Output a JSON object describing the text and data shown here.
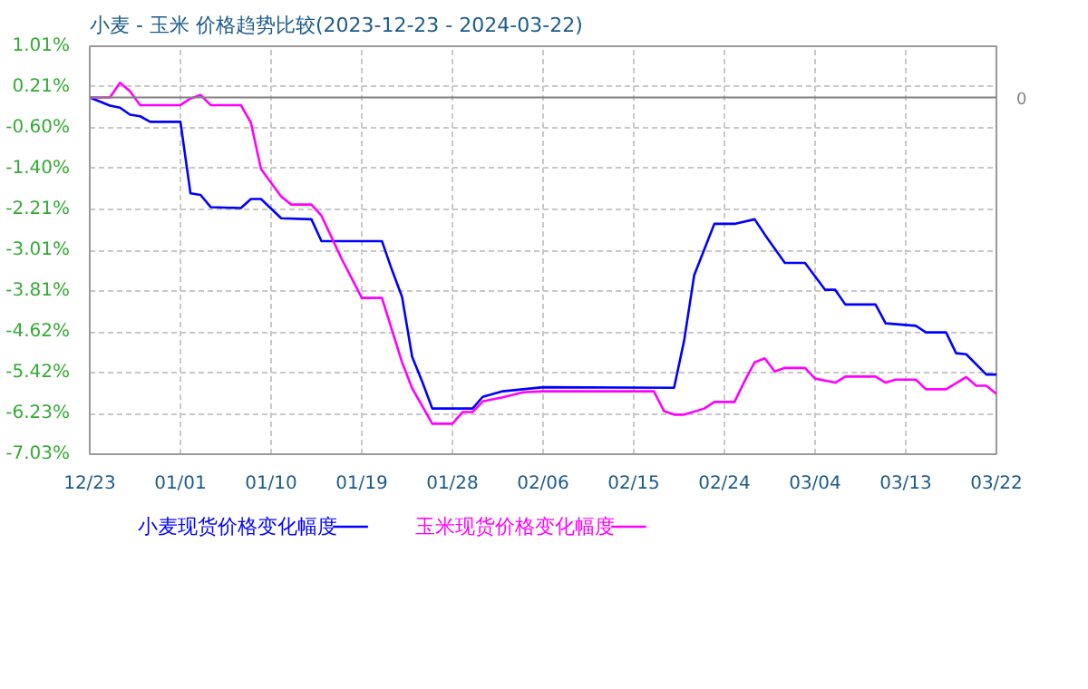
{
  "chart_data": {
    "type": "line",
    "title": "小麦 - 玉米 价格趋势比较(2023-12-23 - 2024-03-22)",
    "series": [
      {
        "name": "小麦现货价格变化幅度",
        "color": "#0000ff",
        "x": [
          "2023-12-23",
          "2023-12-25",
          "2023-12-26",
          "2023-12-27",
          "2023-12-28",
          "2023-12-29",
          "2024-01-01",
          "2024-01-02",
          "2024-01-03",
          "2024-01-04",
          "2024-01-07",
          "2024-01-08",
          "2024-01-09",
          "2024-01-11",
          "2024-01-14",
          "2024-01-15",
          "2024-01-21",
          "2024-01-22",
          "2024-01-23",
          "2024-01-24",
          "2024-01-25",
          "2024-01-26",
          "2024-01-30",
          "2024-01-31",
          "2024-02-02",
          "2024-02-06",
          "2024-02-19",
          "2024-02-20",
          "2024-02-21",
          "2024-02-23",
          "2024-02-25",
          "2024-02-27",
          "2024-02-28",
          "2024-03-01",
          "2024-03-03",
          "2024-03-05",
          "2024-03-06",
          "2024-03-07",
          "2024-03-10",
          "2024-03-11",
          "2024-03-14",
          "2024-03-15",
          "2024-03-17",
          "2024-03-18",
          "2024-03-19",
          "2024-03-21",
          "2024-03-22"
        ],
        "values": [
          0.0,
          -0.16,
          -0.2,
          -0.34,
          -0.37,
          -0.48,
          -0.48,
          -1.89,
          -1.92,
          -2.16,
          -2.18,
          -2.0,
          -2.0,
          -2.38,
          -2.4,
          -2.83,
          -2.83,
          -3.4,
          -3.93,
          -5.11,
          -5.6,
          -6.13,
          -6.13,
          -5.9,
          -5.79,
          -5.71,
          -5.72,
          -4.79,
          -3.5,
          -2.49,
          -2.49,
          -2.4,
          -2.7,
          -3.26,
          -3.26,
          -3.79,
          -3.79,
          -4.08,
          -4.08,
          -4.45,
          -4.5,
          -4.63,
          -4.63,
          -5.04,
          -5.06,
          -5.46,
          -5.46
        ]
      },
      {
        "name": "玉米现货价格变化幅度",
        "color": "#ff00ff",
        "x": [
          "2023-12-23",
          "2023-12-25",
          "2023-12-26",
          "2023-12-27",
          "2023-12-28",
          "2024-01-01",
          "2024-01-02",
          "2024-01-03",
          "2024-01-04",
          "2024-01-07",
          "2024-01-08",
          "2024-01-09",
          "2024-01-11",
          "2024-01-12",
          "2024-01-14",
          "2024-01-15",
          "2024-01-17",
          "2024-01-18",
          "2024-01-19",
          "2024-01-21",
          "2024-01-23",
          "2024-01-24",
          "2024-01-26",
          "2024-01-28",
          "2024-01-29",
          "2024-01-30",
          "2024-01-31",
          "2024-02-02",
          "2024-02-04",
          "2024-02-06",
          "2024-02-17",
          "2024-02-18",
          "2024-02-19",
          "2024-02-20",
          "2024-02-22",
          "2024-02-23",
          "2024-02-25",
          "2024-02-26",
          "2024-02-27",
          "2024-02-28",
          "2024-02-29",
          "2024-03-01",
          "2024-03-03",
          "2024-03-04",
          "2024-03-06",
          "2024-03-07",
          "2024-03-10",
          "2024-03-11",
          "2024-03-12",
          "2024-03-14",
          "2024-03-15",
          "2024-03-17",
          "2024-03-19",
          "2024-03-20",
          "2024-03-21",
          "2024-03-22"
        ],
        "values": [
          0.0,
          0.0,
          0.29,
          0.12,
          -0.15,
          -0.15,
          -0.02,
          0.05,
          -0.15,
          -0.15,
          -0.5,
          -1.41,
          -1.95,
          -2.11,
          -2.11,
          -2.33,
          -3.18,
          -3.56,
          -3.95,
          -3.95,
          -5.22,
          -5.73,
          -6.43,
          -6.43,
          -6.2,
          -6.2,
          -5.99,
          -5.91,
          -5.81,
          -5.79,
          -5.79,
          -6.18,
          -6.25,
          -6.25,
          -6.13,
          -6.0,
          -6.0,
          -5.59,
          -5.22,
          -5.14,
          -5.4,
          -5.33,
          -5.33,
          -5.54,
          -5.62,
          -5.5,
          -5.5,
          -5.62,
          -5.56,
          -5.56,
          -5.75,
          -5.75,
          -5.51,
          -5.68,
          -5.68,
          -5.84
        ]
      }
    ],
    "xlim": [
      "2023-12-23",
      "2024-03-22"
    ],
    "xticks": [
      {
        "value": "2023-12-23",
        "label": "12/23"
      },
      {
        "value": "2024-01-01",
        "label": "01/01"
      },
      {
        "value": "2024-01-10",
        "label": "01/10"
      },
      {
        "value": "2024-01-19",
        "label": "01/19"
      },
      {
        "value": "2024-01-28",
        "label": "01/28"
      },
      {
        "value": "2024-02-06",
        "label": "02/06"
      },
      {
        "value": "2024-02-15",
        "label": "02/15"
      },
      {
        "value": "2024-02-24",
        "label": "02/24"
      },
      {
        "value": "2024-03-04",
        "label": "03/04"
      },
      {
        "value": "2024-03-13",
        "label": "03/13"
      },
      {
        "value": "2024-03-22",
        "label": "03/22"
      }
    ],
    "ylim": [
      -7.03,
      1.01
    ],
    "yticks": [
      {
        "value": 1.01,
        "label": "1.01%"
      },
      {
        "value": 0.21,
        "label": "0.21%"
      },
      {
        "value": -0.6,
        "label": "-0.60%"
      },
      {
        "value": -1.4,
        "label": "-1.40%"
      },
      {
        "value": -2.21,
        "label": "-2.21%"
      },
      {
        "value": -3.01,
        "label": "-3.01%"
      },
      {
        "value": -3.81,
        "label": "-3.81%"
      },
      {
        "value": -4.62,
        "label": "-4.62%"
      },
      {
        "value": -5.42,
        "label": "-5.42%"
      },
      {
        "value": -6.23,
        "label": "-6.23%"
      },
      {
        "value": -7.03,
        "label": "-7.03%"
      }
    ],
    "ref_lines": [
      {
        "axis": "y",
        "value": 0,
        "label": "0",
        "color": "#808080"
      }
    ],
    "grid": true,
    "legend": "bottom",
    "marker": "none",
    "line_style": "solid"
  }
}
